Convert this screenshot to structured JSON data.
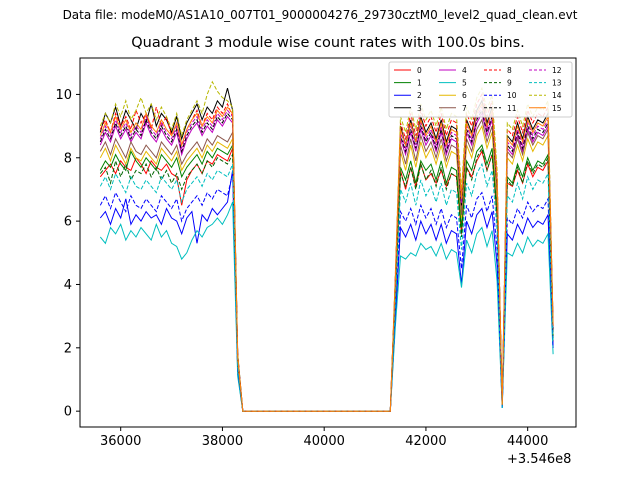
{
  "header": {
    "suptitle": "Data file: modeM0/AS1A10_007T01_9000004276_29730cztM0_level2_quad_clean.evt",
    "title": "Quadrant 3 module wise count rates with 100.0s bins."
  },
  "chart_data": {
    "type": "line",
    "title": "Quadrant 3 module wise count rates with 100.0s bins.",
    "xlabel": "",
    "ylabel": "",
    "x_offset_label": "+3.546e8",
    "xlim": [
      35200,
      44950
    ],
    "ylim": [
      -0.5,
      11.15
    ],
    "xticks": [
      36000,
      38000,
      40000,
      42000,
      44000
    ],
    "yticks": [
      0,
      2,
      4,
      6,
      8,
      10
    ],
    "grid": false,
    "legend_position": "top-right",
    "legend_columns": 4,
    "x": [
      35600,
      35700,
      35800,
      35900,
      36000,
      36100,
      36200,
      36300,
      36400,
      36500,
      36600,
      36700,
      36800,
      36900,
      37000,
      37100,
      37200,
      37300,
      37400,
      37500,
      37600,
      37700,
      37800,
      37900,
      38000,
      38100,
      38200,
      38300,
      38400,
      41300,
      41400,
      41500,
      41600,
      41700,
      41800,
      41900,
      42000,
      42100,
      42200,
      42300,
      42400,
      42500,
      42600,
      42700,
      42800,
      42900,
      43000,
      43100,
      43200,
      43300,
      43400,
      43500,
      43600,
      43700,
      43800,
      43900,
      44000,
      44100,
      44200,
      44300,
      44400,
      44500
    ],
    "series": [
      {
        "name": "0",
        "color": "#ff0000",
        "dash": false,
        "values": [
          7.4,
          7.6,
          7.8,
          7.5,
          7.9,
          7.7,
          7.6,
          8.0,
          7.8,
          7.5,
          7.9,
          7.7,
          7.6,
          7.8,
          7.5,
          7.4,
          6.5,
          7.3,
          7.6,
          7.8,
          7.5,
          7.9,
          7.8,
          8.1,
          8.0,
          7.9,
          8.3,
          1.5,
          0,
          0,
          3.5,
          7.6,
          7.0,
          7.7,
          7.1,
          7.8,
          7.3,
          7.5,
          7.2,
          7.6,
          7.1,
          7.5,
          7.4,
          5.6,
          7.7,
          7.4,
          7.9,
          8.2,
          7.6,
          8.1,
          6.1,
          0.2,
          7.2,
          7.1,
          7.6,
          7.2,
          7.8,
          7.4,
          7.7,
          7.6,
          7.9,
          2.2
        ]
      },
      {
        "name": "1",
        "color": "#008000",
        "dash": false,
        "values": [
          7.6,
          7.9,
          7.7,
          8.1,
          7.8,
          7.6,
          8.2,
          7.9,
          7.7,
          8.0,
          7.8,
          7.6,
          8.1,
          7.9,
          7.7,
          8.0,
          7.4,
          7.7,
          7.9,
          8.1,
          7.8,
          8.2,
          8.0,
          8.3,
          8.2,
          8.1,
          8.4,
          1.6,
          0,
          0,
          3.6,
          7.7,
          7.3,
          7.9,
          7.2,
          7.9,
          7.6,
          7.8,
          7.3,
          7.9,
          7.2,
          7.7,
          7.6,
          5.8,
          7.9,
          7.6,
          8.2,
          8.4,
          7.8,
          8.3,
          6.3,
          0.2,
          7.4,
          7.2,
          7.8,
          7.4,
          8.0,
          7.6,
          7.9,
          7.8,
          8.1,
          2.3
        ]
      },
      {
        "name": "2",
        "color": "#0000ff",
        "dash": false,
        "values": [
          6.1,
          6.3,
          5.9,
          6.4,
          6.1,
          6.7,
          5.9,
          6.2,
          6.0,
          6.3,
          6.1,
          6.2,
          5.9,
          6.4,
          6.1,
          6.0,
          5.6,
          6.1,
          6.3,
          5.3,
          6.2,
          6.0,
          6.4,
          6.2,
          6.4,
          6.6,
          7.6,
          1.2,
          0,
          0,
          2.9,
          5.8,
          5.5,
          5.9,
          5.4,
          6.0,
          5.6,
          5.9,
          5.4,
          5.9,
          5.3,
          5.7,
          5.6,
          4.0,
          6.0,
          5.6,
          6.2,
          6.4,
          5.8,
          6.3,
          4.6,
          0.1,
          5.6,
          5.4,
          5.9,
          5.6,
          6.1,
          5.8,
          6.0,
          5.9,
          6.2,
          2.0
        ]
      },
      {
        "name": "3",
        "color": "#000000",
        "dash": false,
        "values": [
          8.8,
          9.4,
          9.1,
          9.6,
          9.0,
          9.5,
          9.2,
          8.9,
          9.4,
          9.1,
          9.7,
          9.0,
          9.4,
          9.2,
          8.8,
          9.3,
          8.6,
          9.1,
          9.4,
          9.7,
          9.2,
          9.6,
          9.4,
          9.8,
          9.6,
          10.2,
          9.5,
          1.8,
          0,
          0,
          4.2,
          9.0,
          8.4,
          9.2,
          8.5,
          9.3,
          8.8,
          9.1,
          8.6,
          9.2,
          8.5,
          9.0,
          8.9,
          6.7,
          9.2,
          8.8,
          9.5,
          9.8,
          9.1,
          9.6,
          7.3,
          0.2,
          8.7,
          8.5,
          9.1,
          8.6,
          9.3,
          8.9,
          9.2,
          9.1,
          9.4,
          2.7
        ]
      },
      {
        "name": "4",
        "color": "#c000c0",
        "dash": false,
        "values": [
          8.4,
          8.8,
          8.5,
          9.0,
          8.6,
          8.9,
          8.5,
          8.8,
          8.6,
          9.1,
          8.7,
          8.5,
          8.9,
          8.6,
          8.4,
          8.8,
          8.1,
          8.6,
          8.9,
          9.1,
          8.7,
          9.0,
          8.8,
          9.2,
          9.0,
          9.3,
          9.1,
          1.7,
          0,
          0,
          4.0,
          8.6,
          8.1,
          8.8,
          8.2,
          8.9,
          8.4,
          8.7,
          8.2,
          8.8,
          8.1,
          8.6,
          8.5,
          6.4,
          8.8,
          8.4,
          9.1,
          9.4,
          8.7,
          9.2,
          7.0,
          0.2,
          8.3,
          8.1,
          8.7,
          8.2,
          8.9,
          8.5,
          8.8,
          8.7,
          9.0,
          2.6
        ]
      },
      {
        "name": "5",
        "color": "#00bfbf",
        "dash": false,
        "values": [
          5.5,
          5.3,
          5.8,
          5.6,
          5.9,
          5.4,
          5.7,
          5.5,
          5.8,
          5.6,
          5.4,
          5.9,
          5.5,
          5.7,
          5.3,
          5.2,
          4.8,
          5.0,
          5.4,
          5.7,
          5.5,
          5.8,
          5.9,
          6.1,
          5.9,
          6.2,
          6.6,
          1.1,
          0,
          0,
          2.7,
          4.9,
          4.8,
          5.0,
          4.9,
          5.3,
          5.1,
          5.2,
          4.9,
          5.3,
          4.8,
          5.1,
          5.0,
          3.9,
          5.4,
          5.0,
          5.6,
          5.8,
          5.2,
          5.7,
          4.1,
          0.1,
          5.0,
          4.9,
          5.3,
          5.0,
          5.5,
          5.2,
          5.4,
          5.3,
          5.6,
          1.8
        ]
      },
      {
        "name": "6",
        "color": "#e6b800",
        "dash": false,
        "values": [
          8.0,
          8.3,
          7.9,
          8.4,
          8.1,
          7.8,
          8.3,
          8.0,
          7.9,
          8.2,
          8.0,
          7.8,
          8.3,
          8.1,
          7.9,
          8.2,
          7.6,
          7.9,
          8.1,
          8.3,
          8.0,
          8.4,
          8.2,
          8.5,
          8.4,
          8.3,
          8.6,
          1.6,
          0,
          0,
          3.8,
          8.2,
          7.6,
          8.4,
          7.7,
          8.5,
          8.0,
          8.3,
          7.8,
          8.4,
          7.7,
          8.2,
          8.1,
          6.1,
          8.4,
          8.0,
          8.7,
          9.0,
          8.3,
          8.8,
          6.7,
          0.2,
          8.0,
          7.8,
          8.4,
          7.9,
          8.6,
          8.2,
          8.5,
          8.4,
          8.7,
          2.4
        ]
      },
      {
        "name": "7",
        "color": "#8c564b",
        "dash": false,
        "values": [
          8.2,
          8.5,
          8.1,
          8.6,
          8.3,
          8.0,
          8.5,
          8.2,
          8.1,
          8.4,
          8.2,
          8.0,
          8.5,
          8.3,
          8.1,
          8.4,
          7.8,
          8.1,
          8.3,
          8.5,
          8.2,
          8.6,
          8.4,
          8.7,
          8.6,
          8.5,
          8.8,
          1.6,
          0,
          0,
          3.9,
          8.4,
          7.8,
          8.6,
          7.9,
          8.7,
          8.2,
          8.5,
          8.0,
          8.6,
          7.9,
          8.4,
          8.3,
          6.2,
          8.6,
          8.2,
          8.9,
          9.2,
          8.5,
          9.0,
          6.9,
          0.2,
          8.2,
          8.0,
          8.6,
          8.1,
          8.8,
          8.4,
          8.7,
          8.6,
          8.9,
          2.5
        ]
      },
      {
        "name": "8",
        "color": "#ff0000",
        "dash": true,
        "values": [
          8.9,
          9.2,
          8.8,
          9.4,
          9.0,
          9.3,
          8.9,
          9.5,
          9.1,
          9.4,
          8.9,
          9.6,
          9.0,
          9.3,
          8.7,
          9.1,
          8.4,
          8.9,
          9.2,
          9.5,
          9.0,
          9.4,
          9.2,
          9.6,
          9.4,
          9.7,
          9.3,
          1.8,
          0,
          0,
          4.3,
          9.1,
          8.6,
          9.4,
          8.7,
          9.5,
          9.0,
          9.3,
          8.8,
          9.4,
          8.7,
          9.2,
          9.1,
          6.8,
          9.4,
          9.0,
          9.7,
          10.0,
          9.3,
          9.8,
          7.5,
          0.2,
          8.9,
          8.7,
          9.3,
          8.8,
          9.5,
          9.1,
          9.4,
          9.3,
          9.6,
          2.7
        ]
      },
      {
        "name": "9",
        "color": "#006400",
        "dash": true,
        "values": [
          7.5,
          7.7,
          7.2,
          7.9,
          7.4,
          7.8,
          7.3,
          7.6,
          7.5,
          7.8,
          7.4,
          7.7,
          7.3,
          7.6,
          7.2,
          7.5,
          7.0,
          7.4,
          7.6,
          7.8,
          7.5,
          7.9,
          7.7,
          8.0,
          7.9,
          7.8,
          8.1,
          1.5,
          0,
          0,
          3.6,
          7.5,
          7.1,
          7.7,
          7.0,
          7.8,
          7.3,
          7.6,
          7.1,
          7.7,
          7.0,
          7.5,
          7.4,
          5.5,
          7.7,
          7.3,
          8.0,
          8.3,
          7.6,
          8.1,
          6.2,
          0.2,
          7.3,
          7.1,
          7.7,
          7.2,
          7.9,
          7.5,
          7.8,
          7.7,
          8.0,
          2.3
        ]
      },
      {
        "name": "10",
        "color": "#0000ff",
        "dash": true,
        "values": [
          6.5,
          6.8,
          6.4,
          6.9,
          6.6,
          6.3,
          6.8,
          6.5,
          6.4,
          6.7,
          6.5,
          6.3,
          6.8,
          6.6,
          6.4,
          6.7,
          6.0,
          6.4,
          6.6,
          6.8,
          6.5,
          6.9,
          6.7,
          7.0,
          6.9,
          6.8,
          7.5,
          1.3,
          0,
          0,
          3.1,
          6.3,
          6.0,
          6.4,
          5.9,
          6.5,
          6.1,
          6.4,
          5.9,
          6.4,
          5.8,
          6.2,
          6.1,
          4.5,
          6.5,
          6.1,
          6.7,
          6.9,
          6.3,
          6.8,
          5.1,
          0.1,
          6.1,
          5.9,
          6.4,
          6.1,
          6.6,
          6.3,
          6.5,
          6.4,
          6.7,
          2.0
        ]
      },
      {
        "name": "11",
        "color": "#000000",
        "dash": true,
        "values": [
          8.5,
          8.9,
          8.6,
          9.1,
          8.7,
          9.0,
          8.6,
          8.9,
          8.7,
          9.2,
          8.8,
          8.6,
          9.0,
          8.7,
          8.5,
          8.9,
          8.2,
          8.7,
          9.0,
          9.2,
          8.8,
          9.1,
          8.9,
          9.3,
          9.1,
          9.4,
          9.2,
          1.7,
          0,
          0,
          4.1,
          8.7,
          8.2,
          8.9,
          8.3,
          9.0,
          8.5,
          8.8,
          8.3,
          8.9,
          8.2,
          8.7,
          8.6,
          6.5,
          8.9,
          8.5,
          9.2,
          9.5,
          8.8,
          9.3,
          7.1,
          0.2,
          8.4,
          8.2,
          8.8,
          8.3,
          9.0,
          8.6,
          8.9,
          8.8,
          9.1,
          2.6
        ]
      },
      {
        "name": "12",
        "color": "#c000c0",
        "dash": true,
        "values": [
          8.6,
          9.0,
          8.7,
          9.2,
          8.8,
          9.1,
          8.7,
          9.0,
          8.8,
          9.3,
          8.9,
          8.7,
          9.1,
          8.8,
          8.6,
          9.0,
          8.3,
          8.8,
          9.1,
          9.3,
          8.9,
          9.2,
          9.0,
          9.4,
          9.2,
          9.5,
          9.3,
          1.7,
          0,
          0,
          4.1,
          8.8,
          8.3,
          9.0,
          8.4,
          9.1,
          8.6,
          8.9,
          8.4,
          9.0,
          8.3,
          8.8,
          8.7,
          6.6,
          9.0,
          8.6,
          9.3,
          9.6,
          8.9,
          9.4,
          7.2,
          0.2,
          8.5,
          8.3,
          8.9,
          8.4,
          9.1,
          8.7,
          9.0,
          8.9,
          9.2,
          2.6
        ]
      },
      {
        "name": "13",
        "color": "#00bfbf",
        "dash": true,
        "values": [
          7.1,
          7.4,
          7.0,
          7.5,
          7.2,
          6.9,
          7.4,
          7.1,
          7.0,
          7.3,
          7.1,
          6.9,
          7.4,
          7.2,
          7.0,
          7.3,
          6.6,
          7.0,
          7.2,
          7.4,
          7.1,
          7.5,
          7.3,
          7.6,
          7.5,
          7.4,
          7.8,
          1.4,
          0,
          0,
          3.4,
          7.0,
          6.6,
          7.2,
          6.5,
          7.3,
          6.8,
          7.1,
          6.6,
          7.2,
          6.5,
          7.0,
          6.9,
          5.1,
          7.2,
          6.8,
          7.5,
          7.8,
          7.1,
          7.6,
          5.7,
          0.1,
          6.8,
          6.6,
          7.2,
          6.7,
          7.4,
          7.0,
          7.3,
          7.2,
          7.5,
          2.2
        ]
      },
      {
        "name": "14",
        "color": "#b8b800",
        "dash": true,
        "values": [
          9.0,
          9.4,
          9.1,
          9.7,
          9.3,
          9.8,
          9.2,
          9.5,
          9.9,
          9.4,
          9.7,
          9.2,
          9.6,
          9.3,
          8.9,
          9.4,
          8.7,
          9.2,
          9.5,
          9.8,
          9.4,
          10.0,
          10.4,
          10.1,
          9.9,
          9.8,
          9.6,
          1.8,
          0,
          0,
          4.4,
          9.3,
          8.8,
          9.6,
          8.9,
          9.7,
          9.2,
          9.5,
          9.0,
          9.6,
          8.9,
          9.4,
          9.3,
          7.0,
          9.6,
          9.2,
          9.9,
          10.2,
          9.5,
          10.0,
          7.6,
          0.2,
          9.1,
          8.9,
          9.5,
          9.0,
          9.7,
          9.3,
          9.6,
          9.5,
          9.8,
          2.8
        ]
      },
      {
        "name": "15",
        "color": "#ff7f0e",
        "dash": false,
        "values": [
          8.7,
          9.1,
          8.8,
          9.3,
          8.9,
          9.2,
          8.8,
          9.1,
          8.9,
          9.4,
          9.0,
          8.8,
          9.2,
          8.9,
          8.7,
          9.1,
          8.4,
          8.9,
          9.2,
          9.4,
          9.0,
          9.3,
          9.1,
          9.5,
          9.3,
          9.6,
          9.4,
          1.7,
          0,
          0,
          4.2,
          8.9,
          8.4,
          9.1,
          8.5,
          9.2,
          8.7,
          9.0,
          8.5,
          9.1,
          8.4,
          8.9,
          8.8,
          6.7,
          9.1,
          8.7,
          9.4,
          9.7,
          9.0,
          9.5,
          7.3,
          0.2,
          8.6,
          8.4,
          9.0,
          8.5,
          9.2,
          8.8,
          9.1,
          9.0,
          9.3,
          2.7
        ]
      }
    ]
  }
}
